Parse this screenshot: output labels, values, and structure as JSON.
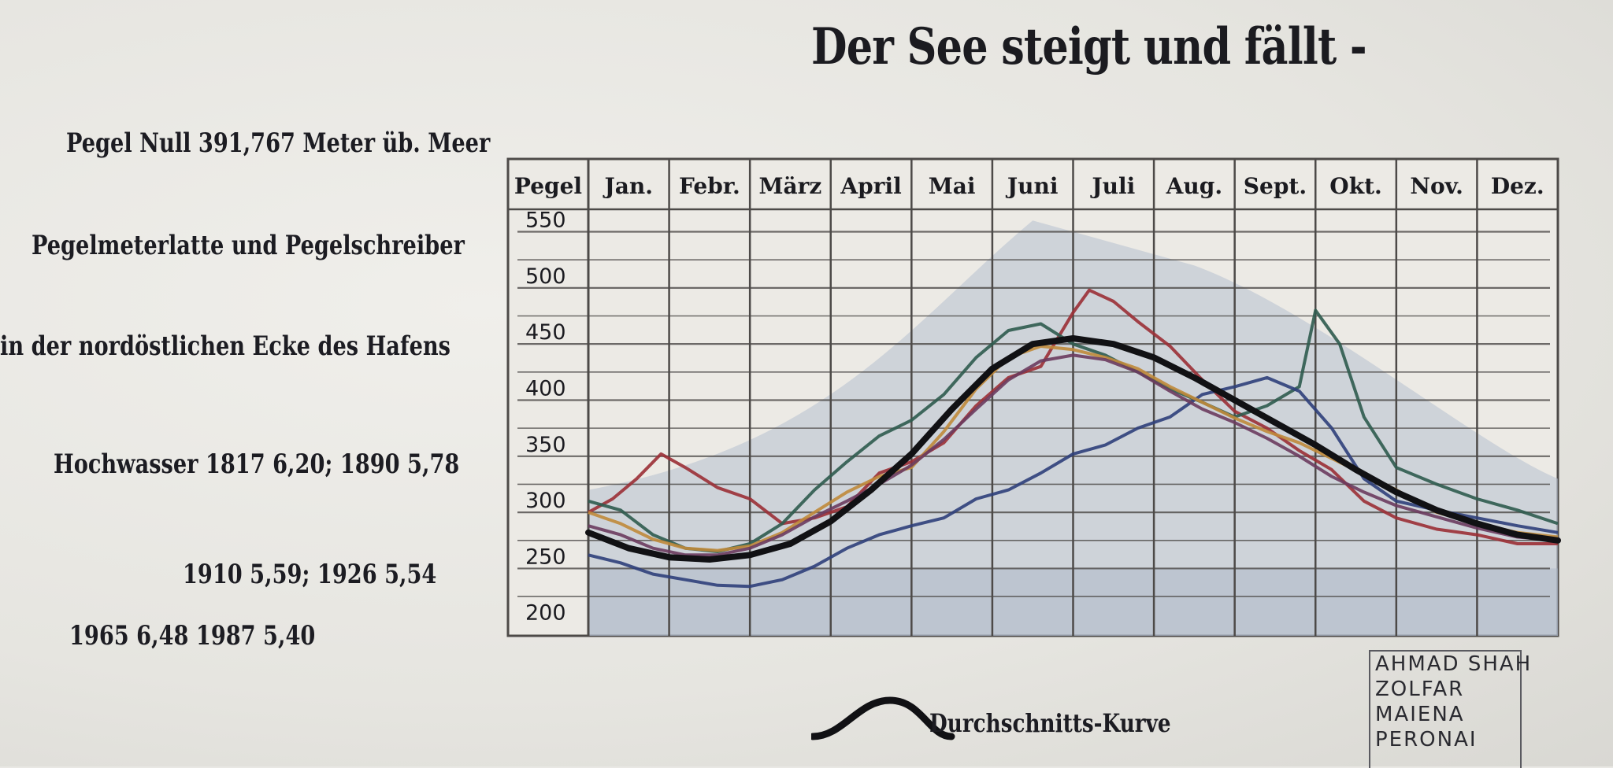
{
  "title": "Der See steigt und fällt -",
  "notes": {
    "zero": "Pegel Null 391,767 Meter üb. Meer",
    "gauge": "Pegelmeterlatte und Pegelschreiber",
    "location": "in der nordöstlichen Ecke des Hafens",
    "flood1": "Hochwasser 1817 6,20; 1890 5,78",
    "flood2": "1910 5,59; 1926 5,54",
    "flood3": "1965 6,48     1987 5,40"
  },
  "legend_label": "Durchschnitts-Kurve",
  "graffiti": {
    "corner_lines": [
      "AHMAD SHAH",
      "ZOLFAR",
      "MAIENA",
      "PERONAI"
    ]
  },
  "colors": {
    "ink": "#1b1b20",
    "paper": "#eceae5",
    "shade": "#b7bfcf",
    "grid": "#4d4a48",
    "average": "#111114",
    "red": "#9b2f35",
    "green": "#2f5b4e",
    "blue": "#2f3f7a",
    "orange": "#c08a3a",
    "purple": "#6b3b5e"
  },
  "chart_data": {
    "type": "line",
    "corner_label": "Pegel",
    "categories": [
      "Jan.",
      "Febr.",
      "März",
      "April",
      "Mai",
      "Juni",
      "Juli",
      "Aug.",
      "Sept.",
      "Okt.",
      "Nov.",
      "Dez."
    ],
    "y_ticks": [
      "550",
      "500",
      "450",
      "400",
      "350",
      "300",
      "250",
      "200"
    ],
    "ylim": [
      190,
      570
    ],
    "x_domain": [
      0,
      12
    ],
    "grid": true,
    "average_curve": {
      "x": [
        0,
        0.5,
        1,
        1.5,
        2,
        2.5,
        3,
        3.5,
        4,
        4.5,
        5,
        5.5,
        6,
        6.5,
        7,
        7.5,
        8,
        8.5,
        9,
        9.5,
        10,
        10.5,
        11,
        11.5,
        12
      ],
      "y": [
        282,
        268,
        260,
        258,
        262,
        272,
        292,
        320,
        352,
        392,
        428,
        450,
        455,
        450,
        438,
        420,
        400,
        380,
        360,
        338,
        318,
        302,
        290,
        280,
        275
      ]
    },
    "series": [
      {
        "x": [
          0,
          0.3,
          0.6,
          0.9,
          1.2,
          1.6,
          2,
          2.4,
          2.8,
          3.2,
          3.6,
          4,
          4.4,
          4.8,
          5.2,
          5.6,
          6,
          6.2,
          6.5,
          6.8,
          7.2,
          7.6,
          8,
          8.4,
          8.8,
          9.2,
          9.6,
          10,
          10.5,
          11,
          11.5,
          12
        ],
        "y": [
          300,
          312,
          330,
          352,
          340,
          322,
          312,
          290,
          295,
          305,
          335,
          345,
          362,
          395,
          420,
          430,
          478,
          498,
          488,
          470,
          448,
          418,
          390,
          375,
          355,
          338,
          310,
          295,
          285,
          280,
          272,
          272
        ]
      },
      {
        "x": [
          0,
          0.4,
          0.8,
          1.2,
          1.6,
          2,
          2.4,
          2.8,
          3.2,
          3.6,
          4,
          4.4,
          4.8,
          5.2,
          5.6,
          6,
          6.4,
          6.8,
          7.2,
          7.6,
          8,
          8.4,
          8.8,
          9,
          9.3,
          9.6,
          10,
          10.5,
          11,
          11.5,
          12
        ],
        "y": [
          310,
          302,
          280,
          268,
          265,
          272,
          290,
          320,
          345,
          368,
          382,
          405,
          438,
          462,
          468,
          450,
          440,
          425,
          410,
          398,
          385,
          395,
          412,
          480,
          450,
          385,
          340,
          325,
          312,
          302,
          290
        ]
      },
      {
        "x": [
          0,
          0.4,
          0.8,
          1.2,
          1.6,
          2,
          2.4,
          2.8,
          3.2,
          3.6,
          4,
          4.4,
          4.8,
          5.2,
          5.6,
          6,
          6.4,
          6.8,
          7.2,
          7.6,
          8,
          8.4,
          8.8,
          9.2,
          9.6,
          10,
          10.5,
          11,
          11.5,
          12
        ],
        "y": [
          262,
          255,
          245,
          240,
          235,
          234,
          240,
          252,
          268,
          280,
          288,
          295,
          312,
          320,
          335,
          352,
          360,
          375,
          385,
          405,
          412,
          420,
          408,
          375,
          330,
          310,
          302,
          295,
          288,
          282
        ]
      },
      {
        "x": [
          0,
          0.4,
          0.8,
          1.2,
          1.6,
          2,
          2.4,
          2.8,
          3.2,
          3.6,
          4,
          4.4,
          4.8,
          5.2,
          5.6,
          6,
          6.4,
          6.8,
          7.2,
          7.6,
          8,
          8.4,
          8.8,
          9.2,
          9.6,
          10,
          10.5,
          11,
          11.5,
          12
        ],
        "y": [
          300,
          290,
          276,
          268,
          266,
          270,
          282,
          300,
          318,
          332,
          340,
          372,
          410,
          438,
          448,
          445,
          438,
          428,
          412,
          398,
          384,
          372,
          362,
          348,
          334,
          320,
          300,
          290,
          282,
          278
        ]
      },
      {
        "x": [
          0,
          0.4,
          0.8,
          1.2,
          1.6,
          2,
          2.4,
          2.8,
          3.2,
          3.6,
          4,
          4.4,
          4.8,
          5.2,
          5.6,
          6,
          6.4,
          6.8,
          7.2,
          7.6,
          8,
          8.4,
          8.8,
          9.2,
          9.6,
          10,
          10.5,
          11,
          11.5,
          12
        ],
        "y": [
          288,
          280,
          268,
          262,
          262,
          268,
          280,
          296,
          310,
          325,
          342,
          365,
          392,
          418,
          435,
          440,
          436,
          425,
          408,
          392,
          380,
          366,
          350,
          332,
          318,
          306,
          296,
          286,
          278,
          275
        ]
      }
    ],
    "series_colors_keys": [
      "red",
      "green",
      "blue",
      "orange",
      "purple"
    ]
  }
}
